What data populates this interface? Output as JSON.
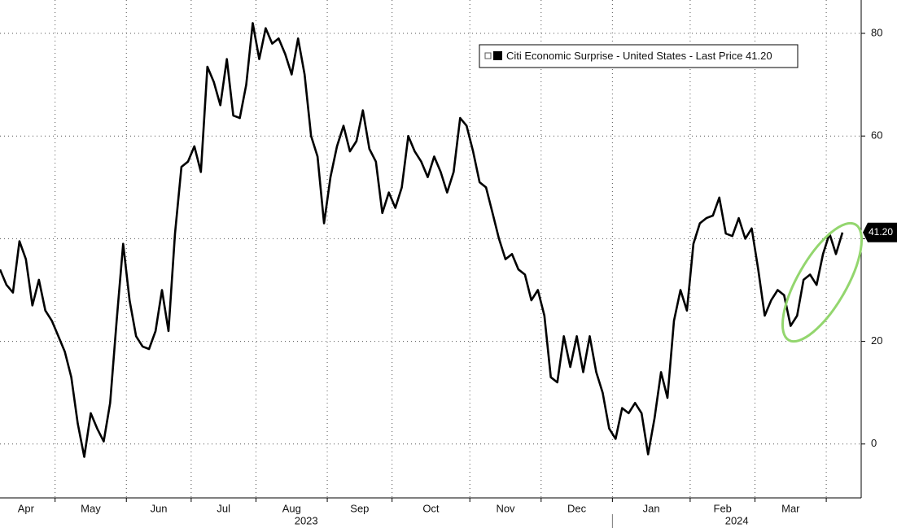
{
  "chart_data": {
    "type": "line",
    "legend": "Citi Economic Surprise - United States - Last Price 41.20",
    "color": "#000000",
    "ylim": [
      -10.5,
      86.5
    ],
    "yticks": [
      0,
      20,
      40,
      60,
      80
    ],
    "grid": true,
    "last_value_label": "41.20",
    "groups": [
      {
        "label": "2023",
        "months": [
          {
            "label": "Apr",
            "values": [
              34,
              31,
              29.5,
              39.5,
              36,
              27,
              32,
              26,
              24
            ]
          },
          {
            "label": "May",
            "values": [
              21,
              18,
              13,
              4,
              -2.5,
              6,
              3,
              0.5,
              8,
              24,
              39
            ]
          },
          {
            "label": "Jun",
            "values": [
              28,
              21,
              19,
              18.5,
              22,
              30,
              22,
              41,
              54,
              55
            ]
          },
          {
            "label": "Jul",
            "values": [
              58,
              53,
              73.5,
              70.5,
              66,
              75,
              64,
              63.5,
              70,
              82
            ]
          },
          {
            "label": "Aug",
            "values": [
              75,
              81,
              78,
              79,
              76,
              72,
              79,
              72,
              60,
              56,
              43
            ]
          },
          {
            "label": "Sep",
            "values": [
              52,
              58,
              62,
              57,
              59,
              65,
              57.5,
              55,
              45,
              49
            ]
          },
          {
            "label": "Oct",
            "values": [
              46,
              50,
              60,
              57,
              55,
              52,
              56,
              53,
              49,
              53,
              63.5,
              62
            ]
          },
          {
            "label": "Nov",
            "values": [
              57,
              51,
              50,
              45,
              40,
              36,
              37,
              34,
              33,
              28,
              30
            ]
          },
          {
            "label": "Dec",
            "values": [
              25,
              13,
              12,
              21,
              15,
              21,
              14,
              21,
              14,
              10,
              3
            ]
          }
        ]
      },
      {
        "label": "2024",
        "months": [
          {
            "label": "Jan",
            "values": [
              1,
              7,
              6,
              8,
              6,
              -2,
              5,
              14,
              9,
              24,
              30,
              26
            ]
          },
          {
            "label": "Feb",
            "values": [
              39,
              43,
              44,
              44.5,
              48,
              41,
              40.5,
              44,
              40,
              42
            ]
          },
          {
            "label": "Mar",
            "values": [
              34,
              25,
              28,
              30,
              29,
              23,
              25,
              32,
              33,
              31,
              37
            ]
          },
          {
            "label": null,
            "values": [
              41,
              37,
              41.2
            ]
          }
        ]
      }
    ]
  }
}
